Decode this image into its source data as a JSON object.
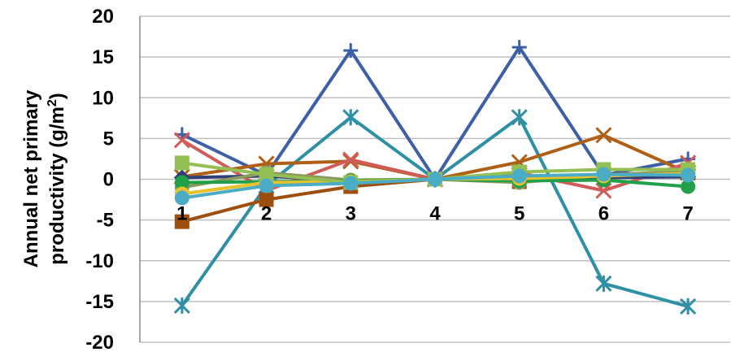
{
  "chart_data": {
    "type": "line",
    "categories": [
      "1",
      "2",
      "3",
      "4",
      "5",
      "6",
      "7"
    ],
    "ylabel_line1": "Annual net primary",
    "ylabel_line2_prefix": "productivity (g/m",
    "ylabel_line2_sup": "2",
    "ylabel_line2_suffix": ")",
    "ylim": [
      -20,
      20
    ],
    "yticks": [
      "20",
      "15",
      "10",
      "5",
      "0",
      "-5",
      "-10",
      "-15",
      "-20"
    ],
    "grid": true,
    "legend": "none",
    "series": [
      {
        "color": "#3D5FA5",
        "marker": "plus",
        "values": [
          5.5,
          0.5,
          15.8,
          0,
          16.2,
          0.5,
          2.5
        ]
      },
      {
        "color": "#2E8FA5",
        "marker": "asterisk",
        "values": [
          -15.5,
          -0.8,
          7.6,
          0,
          7.6,
          -12.8,
          -15.6
        ]
      },
      {
        "color": "#B05F16",
        "marker": "x",
        "values": [
          0.3,
          1.9,
          2.2,
          0,
          2.1,
          5.4,
          0.8
        ]
      },
      {
        "color": "#D15B57",
        "marker": "x",
        "values": [
          4.8,
          -1.4,
          2.4,
          0,
          0.8,
          -1.4,
          2.0
        ]
      },
      {
        "color": "#9E4F10",
        "marker": "square",
        "values": [
          -5.2,
          -2.5,
          -0.9,
          0,
          -0.3,
          0.6,
          0.8
        ]
      },
      {
        "color": "#2F3F78",
        "marker": "diamond",
        "values": [
          0.2,
          0.4,
          -0.2,
          0,
          -0.1,
          0.2,
          0.3
        ]
      },
      {
        "color": "#8A9A5B",
        "marker": "circle",
        "values": [
          -1.0,
          0.8,
          -0.1,
          0,
          -0.4,
          0.5,
          1.0
        ]
      },
      {
        "color": "#21A049",
        "marker": "circle",
        "values": [
          -0.4,
          -0.3,
          -0.2,
          0,
          -0.2,
          -0.1,
          -0.9
        ]
      },
      {
        "color": "#E8C22A",
        "marker": "circle",
        "values": [
          -1.8,
          -0.4,
          -0.3,
          0,
          0.1,
          0.4,
          0.7
        ]
      },
      {
        "color": "#94C053",
        "marker": "square",
        "values": [
          2.0,
          0.6,
          -0.4,
          0,
          0.9,
          1.2,
          1.2
        ]
      },
      {
        "color": "#4BACC6",
        "marker": "circle",
        "values": [
          -2.3,
          -0.8,
          -0.5,
          0,
          0.4,
          0.6,
          0.5
        ]
      }
    ]
  }
}
